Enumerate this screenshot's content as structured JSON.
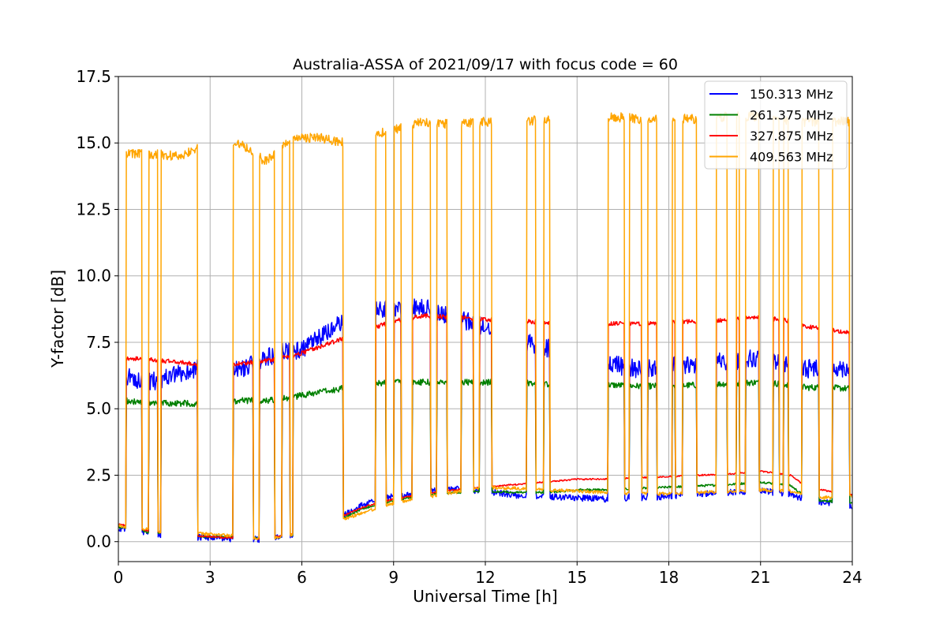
{
  "chart_data": {
    "type": "line",
    "title": "Australia-ASSA of 2021/09/17 with focus code = 60",
    "xlabel": "Universal Time [h]",
    "ylabel": "Y-factor [dB]",
    "xlim": [
      0,
      24
    ],
    "ylim": [
      -0.75,
      17.5
    ],
    "xticks": [
      0,
      3,
      6,
      9,
      12,
      15,
      18,
      21,
      24
    ],
    "xtick_labels": [
      "0",
      "3",
      "6",
      "9",
      "12",
      "15",
      "18",
      "21",
      "24"
    ],
    "yticks": [
      0,
      2.5,
      5,
      7.5,
      10,
      12.5,
      15,
      17.5
    ],
    "ytick_labels": [
      "0.0",
      "2.5",
      "5.0",
      "7.5",
      "10.0",
      "12.5",
      "15.0",
      "17.5"
    ],
    "grid": true,
    "legend_position": "top-right",
    "spikes": [
      0.25,
      0.78,
      1.0,
      1.3,
      1.4,
      2.6,
      3.75,
      4.4,
      4.6,
      5.1,
      5.35,
      5.6,
      5.7,
      7.35,
      8.4,
      8.75,
      9.0,
      9.25,
      9.6,
      10.2,
      10.4,
      10.75,
      11.2,
      11.6,
      11.8,
      12.2,
      13.35,
      13.65,
      13.9,
      14.1,
      16.0,
      16.55,
      16.7,
      17.1,
      17.3,
      17.6,
      18.1,
      18.2,
      18.45,
      18.9,
      19.55,
      19.9,
      20.2,
      20.3,
      20.5,
      20.95,
      21.4,
      21.6,
      21.75,
      21.9,
      22.35,
      22.9,
      23.35,
      23.9
    ],
    "series": [
      {
        "name": "150.313 MHz",
        "color": "#0000ff",
        "x": [
          0.0,
          0.3,
          1.0,
          2.0,
          2.7,
          4.0,
          4.8,
          5.5,
          6.0,
          6.5,
          7.0,
          7.4,
          8.0,
          9.0,
          10.0,
          11.0,
          12.0,
          13.0,
          14.0,
          15.0,
          16.0,
          17.0,
          18.0,
          19.0,
          20.0,
          21.0,
          22.0,
          22.5,
          23.0,
          24.0
        ],
        "low": [
          0.5,
          0.45,
          0.3,
          0.2,
          0.15,
          0.1,
          0.08,
          0.2,
          0.35,
          0.5,
          0.75,
          1.0,
          1.4,
          1.7,
          1.9,
          2.0,
          1.9,
          1.75,
          1.7,
          1.65,
          1.6,
          1.65,
          1.7,
          1.8,
          1.85,
          1.9,
          1.8,
          1.5,
          1.5,
          1.3
        ],
        "high": [
          6.5,
          6.2,
          6.0,
          6.3,
          6.6,
          6.5,
          6.9,
          7.2,
          7.2,
          7.6,
          8.0,
          8.3,
          8.6,
          8.8,
          8.8,
          8.4,
          8.1,
          7.6,
          7.3,
          7.0,
          6.7,
          6.5,
          6.6,
          6.7,
          6.8,
          6.9,
          6.6,
          6.5,
          6.6,
          6.5
        ]
      },
      {
        "name": "261.375 MHz",
        "color": "#008000",
        "x": [
          0.0,
          0.3,
          1.0,
          2.0,
          2.7,
          4.0,
          4.8,
          5.5,
          6.0,
          6.5,
          7.0,
          7.4,
          8.0,
          9.0,
          10.0,
          11.0,
          12.0,
          13.0,
          14.0,
          15.0,
          16.0,
          17.0,
          18.0,
          19.0,
          20.0,
          21.0,
          22.0,
          22.5,
          23.0,
          24.0
        ],
        "low": [
          0.55,
          0.5,
          0.35,
          0.25,
          0.2,
          0.15,
          0.12,
          0.2,
          0.3,
          0.45,
          0.65,
          0.9,
          1.25,
          1.55,
          1.75,
          1.85,
          1.9,
          1.85,
          1.85,
          1.95,
          1.95,
          2.0,
          2.05,
          2.1,
          2.15,
          2.25,
          2.1,
          1.65,
          1.55,
          1.45
        ],
        "high": [
          5.3,
          5.3,
          5.2,
          5.2,
          5.2,
          5.3,
          5.3,
          5.4,
          5.5,
          5.6,
          5.7,
          5.8,
          5.9,
          6.0,
          6.0,
          6.0,
          6.0,
          6.0,
          5.9,
          5.9,
          5.9,
          5.85,
          5.85,
          5.9,
          5.95,
          6.0,
          5.9,
          5.8,
          5.8,
          5.75
        ]
      },
      {
        "name": "327.875 MHz",
        "color": "#ff0000",
        "x": [
          0.0,
          0.3,
          1.0,
          2.0,
          2.7,
          4.0,
          4.8,
          5.5,
          6.0,
          6.5,
          7.0,
          7.4,
          8.0,
          9.0,
          10.0,
          11.0,
          12.0,
          13.0,
          14.0,
          15.0,
          16.0,
          17.0,
          18.0,
          19.0,
          20.0,
          21.0,
          22.0,
          22.5,
          23.0,
          24.0
        ],
        "low": [
          0.65,
          0.6,
          0.4,
          0.25,
          0.2,
          0.12,
          0.1,
          0.25,
          0.35,
          0.5,
          0.75,
          1.0,
          1.3,
          1.6,
          1.8,
          1.95,
          2.05,
          2.15,
          2.25,
          2.35,
          2.35,
          2.4,
          2.45,
          2.5,
          2.55,
          2.65,
          2.5,
          2.05,
          1.95,
          1.75
        ],
        "high": [
          6.9,
          6.9,
          6.85,
          6.75,
          6.65,
          6.7,
          6.8,
          6.95,
          7.1,
          7.3,
          7.5,
          7.65,
          7.9,
          8.3,
          8.5,
          8.45,
          8.35,
          8.3,
          8.25,
          8.2,
          8.2,
          8.2,
          8.25,
          8.3,
          8.35,
          8.45,
          8.3,
          8.1,
          8.0,
          7.85
        ]
      },
      {
        "name": "409.563 MHz",
        "color": "#ffa500",
        "x": [
          0.0,
          0.3,
          1.0,
          2.0,
          2.7,
          4.0,
          4.8,
          5.5,
          6.0,
          6.5,
          7.0,
          7.4,
          8.0,
          9.0,
          10.0,
          11.0,
          12.0,
          13.0,
          14.0,
          15.0,
          16.0,
          17.0,
          18.0,
          19.0,
          20.0,
          21.0,
          22.0,
          22.5,
          23.0,
          24.0
        ],
        "low": [
          0.6,
          0.55,
          0.45,
          0.25,
          0.3,
          0.2,
          0.1,
          0.2,
          0.3,
          0.45,
          0.65,
          0.85,
          1.1,
          1.45,
          1.65,
          1.85,
          2.05,
          2.0,
          1.95,
          1.9,
          1.85,
          1.8,
          1.8,
          1.85,
          1.9,
          1.95,
          1.9,
          1.75,
          1.65,
          1.7
        ],
        "high": [
          14.6,
          14.6,
          14.6,
          14.5,
          14.9,
          15.0,
          14.3,
          15.0,
          15.2,
          15.2,
          15.1,
          15.0,
          15.2,
          15.5,
          15.8,
          15.7,
          15.8,
          15.8,
          15.9,
          16.4,
          16.0,
          15.9,
          15.9,
          15.9,
          16.0,
          16.0,
          15.8,
          15.8,
          15.8,
          15.8
        ]
      }
    ]
  }
}
